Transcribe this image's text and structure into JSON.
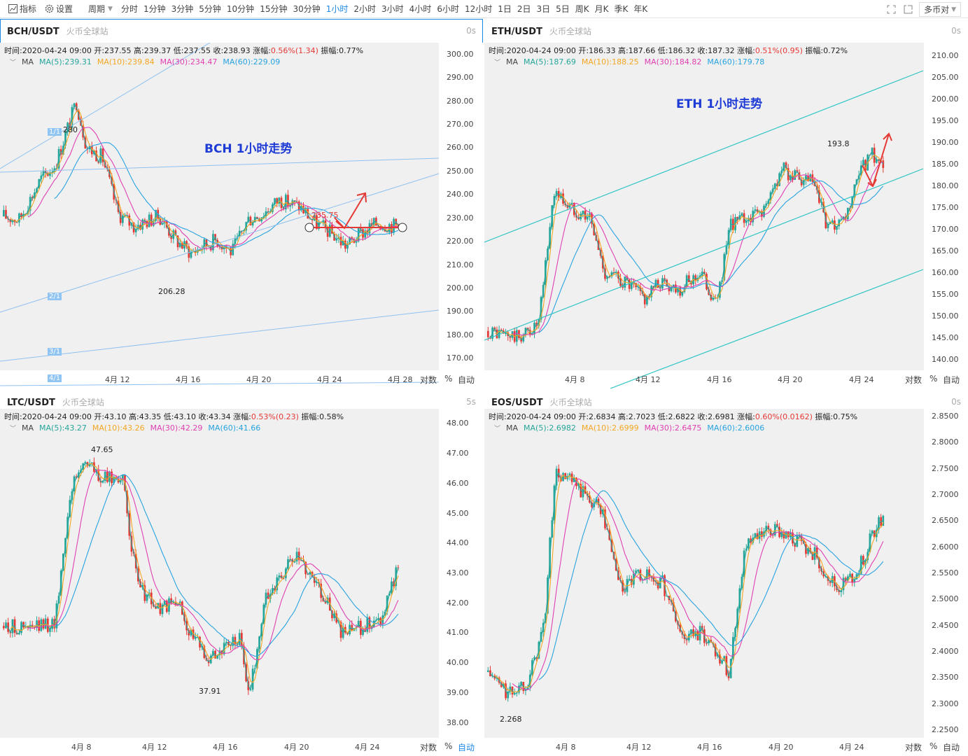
{
  "toolbar": {
    "indicators": "指标",
    "settings": "设置",
    "period_label": "周期",
    "periods": [
      "分时",
      "1分钟",
      "3分钟",
      "5分钟",
      "10分钟",
      "15分钟",
      "30分钟",
      "1小时",
      "2小时",
      "3小时",
      "4小时",
      "6小时",
      "12小时",
      "1日",
      "2日",
      "3日",
      "5日",
      "周K",
      "月K",
      "季K",
      "年K"
    ],
    "active_period": "1小时",
    "multi_coin": "多币对"
  },
  "common": {
    "exchange": "火币全球站",
    "timer": "0s",
    "log_label": "对数",
    "pct_label": "%",
    "auto_label": "自动",
    "ma_label": "MA"
  },
  "colors": {
    "ma5": "#26a69a",
    "ma10": "#f5a623",
    "ma30": "#e040b3",
    "ma60": "#29a3e0",
    "up": "#26a69a",
    "down": "#e53935",
    "accent": "#1e88e5"
  },
  "panels": [
    {
      "symbol": "BCH/USDT",
      "timer": "0s",
      "info": {
        "time": "时间:2020-04-24 09:00",
        "open": "开:237.55",
        "high": "高:239.37",
        "low": "低:237.55",
        "close": "收:238.93",
        "change_label": "涨幅:",
        "change": "0.56%(1.34)",
        "amp": "振幅:0.77%"
      },
      "ma": {
        "ma5": "MA(5):239.31",
        "ma10": "MA(10):239.84",
        "ma30": "MA(30):234.47",
        "ma60": "MA(60):229.09"
      },
      "yaxis": [
        "300.00",
        "290.00",
        "280.00",
        "270.00",
        "260.00",
        "250.00",
        "240.00",
        "230.00",
        "220.00",
        "210.00",
        "200.00",
        "190.00",
        "180.00",
        "170.00"
      ],
      "xaxis": [
        "4月 12",
        "4月 16",
        "4月 20",
        "4月 24",
        "4月 28"
      ],
      "title": "BCH 1小时走势",
      "annotations": {
        "high": "280",
        "low": "206.28",
        "price": "235.75"
      },
      "fan_labels": [
        "1/1",
        "2/1",
        "3/1",
        "4/1"
      ]
    },
    {
      "symbol": "ETH/USDT",
      "timer": "0s",
      "info": {
        "time": "时间:2020-04-24 09:00",
        "open": "开:186.33",
        "high": "高:187.66",
        "low": "低:186.32",
        "close": "收:187.32",
        "change_label": "涨幅:",
        "change": "0.51%(0.95)",
        "amp": "振幅:0.72%"
      },
      "ma": {
        "ma5": "MA(5):187.69",
        "ma10": "MA(10):188.25",
        "ma30": "MA(30):184.82",
        "ma60": "MA(60):179.78"
      },
      "yaxis": [
        "210.00",
        "205.00",
        "200.00",
        "195.00",
        "190.00",
        "185.00",
        "180.00",
        "175.00",
        "170.00",
        "165.00",
        "160.00",
        "155.00",
        "150.00",
        "145.00",
        "140.00"
      ],
      "xaxis": [
        "4月 8",
        "4月 12",
        "4月 16",
        "4月 20",
        "4月 24"
      ],
      "title": "ETH 1小时走势",
      "annotations": {
        "high": "193.8"
      }
    },
    {
      "symbol": "LTC/USDT",
      "timer": "5s",
      "info": {
        "time": "时间:2020-04-24 09:00",
        "open": "开:43.10",
        "high": "高:43.35",
        "low": "低:43.10",
        "close": "收:43.34",
        "change_label": "涨幅:",
        "change": "0.53%(0.23)",
        "amp": "振幅:0.58%"
      },
      "ma": {
        "ma5": "MA(5):43.27",
        "ma10": "MA(10):43.26",
        "ma30": "MA(30):42.29",
        "ma60": "MA(60):41.66"
      },
      "yaxis": [
        "48.00",
        "47.00",
        "46.00",
        "45.00",
        "44.00",
        "43.00",
        "42.00",
        "41.00",
        "40.00",
        "39.00",
        "38.00"
      ],
      "xaxis": [
        "4月 8",
        "4月 12",
        "4月 16",
        "4月 20",
        "4月 24"
      ],
      "annotations": {
        "high": "47.65",
        "low": "37.91"
      }
    },
    {
      "symbol": "EOS/USDT",
      "timer": "0s",
      "info": {
        "time": "时间:2020-04-24 09:00",
        "open": "开:2.6834",
        "high": "高:2.7023",
        "low": "低:2.6822",
        "close": "收:2.6981",
        "change_label": "涨幅:",
        "change": "0.60%(0.0162)",
        "amp": "振幅:0.75%"
      },
      "ma": {
        "ma5": "MA(5):2.6982",
        "ma10": "MA(10):2.6999",
        "ma30": "MA(30):2.6475",
        "ma60": "MA(60):2.6006"
      },
      "yaxis": [
        "2.8500",
        "2.8000",
        "2.7500",
        "2.7000",
        "2.6500",
        "2.6000",
        "2.5500",
        "2.5000",
        "2.4500",
        "2.4000",
        "2.3500",
        "2.3000",
        "2.2500"
      ],
      "xaxis": [
        "4月 8",
        "4月 12",
        "4月 16",
        "4月 20",
        "4月 24"
      ],
      "annotations": {
        "low": "2.268"
      }
    }
  ]
}
